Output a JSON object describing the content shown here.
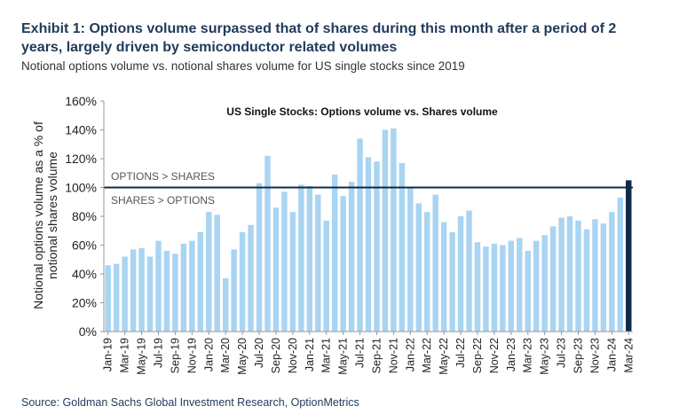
{
  "header": {
    "title": "Exhibit 1: Options volume surpassed that of shares during this month after a period of 2 years, largely driven by semiconductor related volumes",
    "subtitle": "Notional options volume vs. notional shares volume for US single stocks since 2019"
  },
  "footer": {
    "source": "Source: Goldman Sachs Global Investment Research, OptionMetrics"
  },
  "colors": {
    "bar": "#a9d4f2",
    "highlight_bar": "#0d2a48",
    "threshold_line": "#0d2a48",
    "title_text": "#1f3a5a"
  },
  "chart_data": {
    "type": "bar",
    "title": "US Single Stocks:  Options volume vs.  Shares volume",
    "ylabel": "Notional options volume as a % of notional shares volume",
    "xlabel": "",
    "ylim": [
      0,
      160
    ],
    "yticks": [
      0,
      20,
      40,
      60,
      80,
      100,
      120,
      140,
      160
    ],
    "ytick_labels": [
      "0%",
      "20%",
      "40%",
      "60%",
      "80%",
      "100%",
      "120%",
      "140%",
      "160%"
    ],
    "grid": false,
    "threshold": 100,
    "annotations": [
      "OPTIONS  > SHARES",
      "SHARES > OPTIONS"
    ],
    "highlight_category": "Mar-24",
    "tick_labels": [
      "Jan-19",
      "Mar-19",
      "May-19",
      "Jul-19",
      "Sep-19",
      "Nov-19",
      "Jan-20",
      "Mar-20",
      "May-20",
      "Jul-20",
      "Sep-20",
      "Nov-20",
      "Jan-21",
      "Mar-21",
      "May-21",
      "Jul-21",
      "Sep-21",
      "Nov-21",
      "Jan-22",
      "Mar-22",
      "May-22",
      "Jul-22",
      "Sep-22",
      "Nov-22",
      "Jan-23",
      "Mar-23",
      "May-23",
      "Jul-23",
      "Sep-23",
      "Nov-23",
      "Jan-24",
      "Mar-24"
    ],
    "categories": [
      "Jan-19",
      "Feb-19",
      "Mar-19",
      "Apr-19",
      "May-19",
      "Jun-19",
      "Jul-19",
      "Aug-19",
      "Sep-19",
      "Oct-19",
      "Nov-19",
      "Dec-19",
      "Jan-20",
      "Feb-20",
      "Mar-20",
      "Apr-20",
      "May-20",
      "Jun-20",
      "Jul-20",
      "Aug-20",
      "Sep-20",
      "Oct-20",
      "Nov-20",
      "Dec-20",
      "Jan-21",
      "Feb-21",
      "Mar-21",
      "Apr-21",
      "May-21",
      "Jun-21",
      "Jul-21",
      "Aug-21",
      "Sep-21",
      "Oct-21",
      "Nov-21",
      "Dec-21",
      "Jan-22",
      "Feb-22",
      "Mar-22",
      "Apr-22",
      "May-22",
      "Jun-22",
      "Jul-22",
      "Aug-22",
      "Sep-22",
      "Oct-22",
      "Nov-22",
      "Dec-22",
      "Jan-23",
      "Feb-23",
      "Mar-23",
      "Apr-23",
      "May-23",
      "Jun-23",
      "Jul-23",
      "Aug-23",
      "Sep-23",
      "Oct-23",
      "Nov-23",
      "Dec-23",
      "Jan-24",
      "Feb-24",
      "Mar-24"
    ],
    "values": [
      46,
      47,
      52,
      57,
      58,
      52,
      63,
      56,
      54,
      61,
      63,
      69,
      83,
      81,
      37,
      57,
      69,
      74,
      103,
      122,
      86,
      97,
      83,
      102,
      101,
      95,
      77,
      109,
      94,
      104,
      134,
      121,
      118,
      140,
      141,
      117,
      100,
      89,
      83,
      95,
      76,
      69,
      80,
      84,
      62,
      59,
      61,
      60,
      63,
      65,
      56,
      63,
      67,
      73,
      79,
      80,
      77,
      71,
      78,
      75,
      83,
      93,
      105
    ]
  }
}
